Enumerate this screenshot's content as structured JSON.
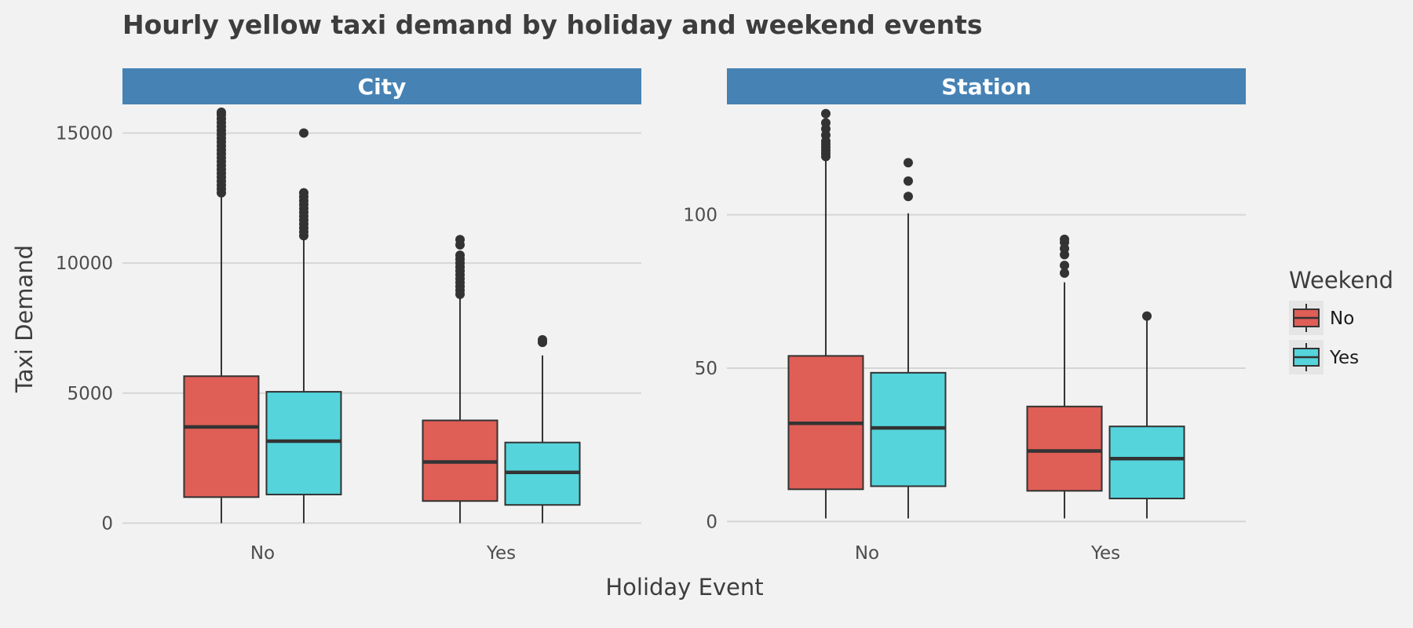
{
  "chart_data": {
    "type": "boxplot",
    "title": "Hourly yellow taxi demand by holiday and weekend events",
    "xlabel": "Holiday Event",
    "ylabel": "Taxi Demand",
    "categories": [
      "No",
      "Yes"
    ],
    "legend": {
      "title": "Weekend",
      "position": "right",
      "entries": [
        "No",
        "Yes"
      ]
    },
    "colors": {
      "No": "#df5e56",
      "Yes": "#55d4dc",
      "strip": "#4682b4",
      "grid": "#d6d6d6",
      "background": "#f2f2f2",
      "outline": "#333333"
    },
    "grid": true,
    "panels": [
      {
        "label": "City",
        "ylim": [
          -350,
          16100
        ],
        "yticks": [
          0,
          5000,
          10000,
          15000
        ],
        "boxes": [
          {
            "holiday": "No",
            "weekend": "No",
            "whisker_low": 0,
            "q1": 1000,
            "median": 3700,
            "q3": 5650,
            "whisker_high": 12600,
            "outliers": [
              12700,
              12850,
              13000,
              13150,
              13300,
              13450,
              13600,
              13750,
              13900,
              14050,
              14200,
              14350,
              14500,
              14650,
              14800,
              14950,
              15100,
              15250,
              15400,
              15550,
              15700,
              15800
            ]
          },
          {
            "holiday": "No",
            "weekend": "Yes",
            "whisker_low": 0,
            "q1": 1100,
            "median": 3150,
            "q3": 5050,
            "whisker_high": 11000,
            "outliers": [
              11050,
              11200,
              11350,
              11500,
              11650,
              11800,
              11950,
              12100,
              12250,
              12400,
              12550,
              12700,
              15000
            ]
          },
          {
            "holiday": "Yes",
            "weekend": "No",
            "whisker_low": 0,
            "q1": 850,
            "median": 2350,
            "q3": 3950,
            "whisker_high": 8700,
            "outliers": [
              8800,
              8950,
              9100,
              9250,
              9400,
              9550,
              9700,
              9850,
              10000,
              10150,
              10300,
              10700,
              10900
            ]
          },
          {
            "holiday": "Yes",
            "weekend": "Yes",
            "whisker_low": 0,
            "q1": 700,
            "median": 1950,
            "q3": 3100,
            "whisker_high": 6450,
            "outliers": [
              6950,
              7050
            ]
          }
        ]
      },
      {
        "label": "Station",
        "ylim": [
          -3.5,
          136
        ],
        "yticks": [
          0,
          50,
          100
        ],
        "boxes": [
          {
            "holiday": "No",
            "weekend": "No",
            "whisker_low": 1,
            "q1": 10.5,
            "median": 32,
            "q3": 54,
            "whisker_high": 118,
            "outliers": [
              119,
              120,
              121,
              122,
              123,
              124,
              126,
              128,
              130,
              133
            ]
          },
          {
            "holiday": "No",
            "weekend": "Yes",
            "whisker_low": 1,
            "q1": 11.5,
            "median": 30.5,
            "q3": 48.5,
            "whisker_high": 100.5,
            "outliers": [
              106,
              111,
              117
            ]
          },
          {
            "holiday": "Yes",
            "weekend": "No",
            "whisker_low": 1,
            "q1": 10,
            "median": 23,
            "q3": 37.5,
            "whisker_high": 78,
            "outliers": [
              81,
              83.5,
              87,
              89,
              91,
              92
            ]
          },
          {
            "holiday": "Yes",
            "weekend": "Yes",
            "whisker_low": 1,
            "q1": 7.5,
            "median": 20.5,
            "q3": 31,
            "whisker_high": 66,
            "outliers": [
              67
            ]
          }
        ]
      }
    ]
  }
}
